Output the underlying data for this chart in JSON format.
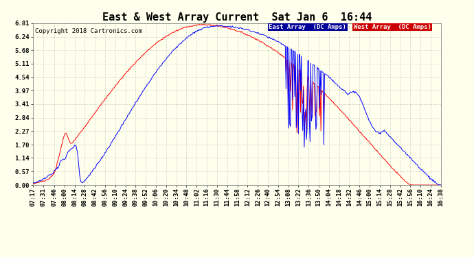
{
  "title": "East & West Array Current  Sat Jan 6  16:44",
  "copyright": "Copyright 2018 Cartronics.com",
  "legend_east": "East Array  (DC Amps)",
  "legend_west": "West Array  (DC Amps)",
  "east_color": "#0000ff",
  "west_color": "#ff0000",
  "legend_east_bg": "#000099",
  "legend_west_bg": "#cc0000",
  "background_color": "#ffffee",
  "plot_bg_color": "#ffffee",
  "grid_color": "#999999",
  "yticks": [
    0.0,
    0.57,
    1.14,
    1.7,
    2.27,
    2.84,
    3.41,
    3.97,
    4.54,
    5.11,
    5.68,
    6.24,
    6.81
  ],
  "ylim": [
    0.0,
    6.81
  ],
  "title_fontsize": 11,
  "tick_fontsize": 6.5,
  "copyright_fontsize": 6.5,
  "legend_fontsize": 6.5,
  "xtick_labels": [
    "07:17",
    "07:31",
    "07:46",
    "08:00",
    "08:14",
    "08:28",
    "08:42",
    "08:56",
    "09:10",
    "09:24",
    "09:38",
    "09:52",
    "10:06",
    "10:20",
    "10:34",
    "10:48",
    "11:02",
    "11:16",
    "11:30",
    "11:44",
    "11:58",
    "12:12",
    "12:26",
    "12:40",
    "12:54",
    "13:08",
    "13:22",
    "13:36",
    "13:50",
    "14:04",
    "14:18",
    "14:32",
    "14:46",
    "15:00",
    "15:14",
    "15:28",
    "15:42",
    "15:56",
    "16:10",
    "16:24",
    "16:38"
  ]
}
